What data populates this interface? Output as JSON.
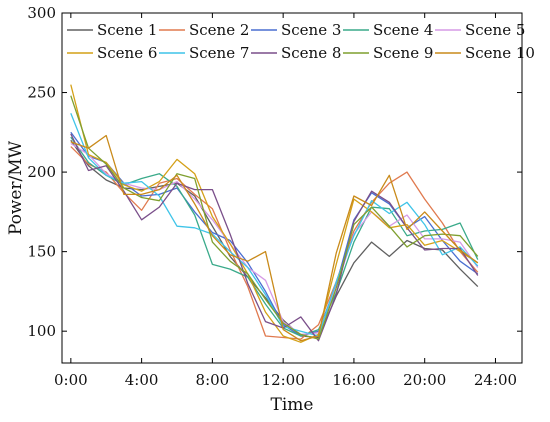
{
  "chart_data": {
    "type": "line",
    "title": "",
    "xlabel": "Time",
    "ylabel": "Power/MW",
    "x_ticks": [
      "0:00",
      "4:00",
      "8:00",
      "12:00",
      "16:00",
      "20:00",
      "24:00"
    ],
    "y_ticks": [
      "100",
      "150",
      "200",
      "250",
      "300"
    ],
    "xlim": [
      -0.5,
      25.5
    ],
    "ylim": [
      80,
      300
    ],
    "grid": false,
    "legend": {
      "placement": "top",
      "columns": 5
    },
    "x": [
      0,
      1,
      2,
      3,
      4,
      5,
      6,
      7,
      8,
      9,
      10,
      11,
      12,
      13,
      14,
      15,
      16,
      17,
      18,
      19,
      20,
      21,
      22,
      23
    ],
    "series": [
      {
        "name": "Scene 1",
        "color": "#606060",
        "values": [
          220,
          204,
          195,
          190,
          189,
          191,
          193,
          185,
          166,
          147,
          134,
          121,
          107,
          97,
          96,
          122,
          143,
          156,
          147,
          157,
          152,
          151,
          139,
          128
        ]
      },
      {
        "name": "Scene 2",
        "color": "#e07a4f",
        "values": [
          216,
          205,
          200,
          187,
          176,
          193,
          196,
          186,
          177,
          151,
          128,
          97,
          96,
          95,
          104,
          131,
          163,
          181,
          193,
          200,
          183,
          168,
          150,
          137
        ]
      },
      {
        "name": "Scene 3",
        "color": "#4a6fd1",
        "values": [
          225,
          210,
          206,
          193,
          185,
          186,
          190,
          175,
          162,
          157,
          143,
          125,
          104,
          97,
          100,
          129,
          170,
          187,
          180,
          165,
          172,
          157,
          144,
          136
        ]
      },
      {
        "name": "Scene 4",
        "color": "#3aaa8a",
        "values": [
          222,
          206,
          198,
          192,
          196,
          199,
          191,
          173,
          142,
          139,
          134,
          117,
          102,
          97,
          101,
          124,
          156,
          178,
          177,
          160,
          163,
          164,
          168,
          145
        ]
      },
      {
        "name": "Scene 5",
        "color": "#d59ae6",
        "values": [
          218,
          211,
          199,
          193,
          190,
          189,
          194,
          183,
          170,
          155,
          140,
          132,
          106,
          98,
          99,
          128,
          161,
          175,
          166,
          173,
          158,
          158,
          156,
          140
        ]
      },
      {
        "name": "Scene 6",
        "color": "#d4a017",
        "values": [
          255,
          211,
          206,
          192,
          188,
          194,
          208,
          199,
          172,
          155,
          136,
          112,
          97,
          93,
          98,
          142,
          183,
          175,
          165,
          167,
          154,
          157,
          150,
          143
        ]
      },
      {
        "name": "Scene 7",
        "color": "#3fc4e8",
        "values": [
          237,
          209,
          198,
          193,
          194,
          185,
          166,
          165,
          161,
          150,
          140,
          123,
          103,
          100,
          97,
          131,
          160,
          182,
          174,
          181,
          167,
          148,
          153,
          141
        ]
      },
      {
        "name": "Scene 8",
        "color": "#7a4f8a",
        "values": [
          224,
          201,
          204,
          188,
          170,
          178,
          193,
          189,
          189,
          161,
          130,
          106,
          102,
          109,
          94,
          123,
          169,
          188,
          181,
          165,
          151,
          152,
          152,
          135
        ]
      },
      {
        "name": "Scene 9",
        "color": "#7f9f2f",
        "values": [
          248,
          215,
          205,
          190,
          184,
          182,
          199,
          196,
          156,
          144,
          136,
          120,
          105,
          98,
          95,
          127,
          167,
          178,
          166,
          153,
          160,
          161,
          160,
          147
        ]
      },
      {
        "name": "Scene 10",
        "color": "#c98a1a",
        "values": [
          219,
          215,
          223,
          186,
          186,
          189,
          198,
          180,
          160,
          148,
          144,
          150,
          101,
          94,
          97,
          149,
          185,
          179,
          198,
          164,
          175,
          163,
          151,
          143
        ]
      }
    ]
  }
}
